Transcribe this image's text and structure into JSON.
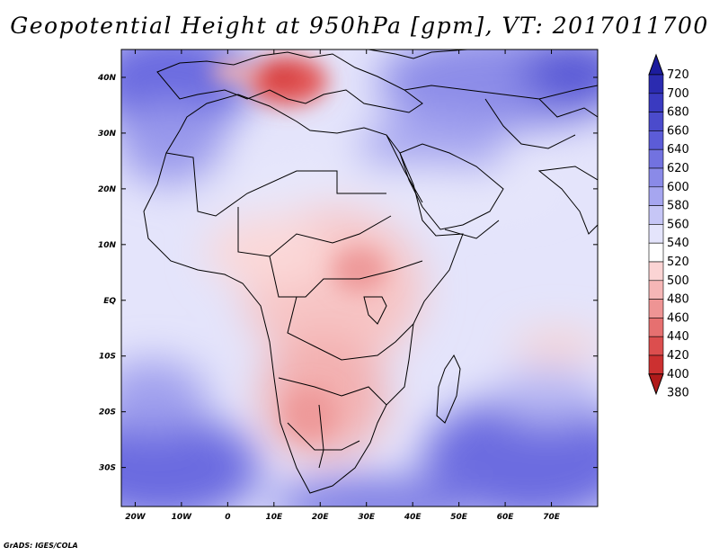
{
  "title": "Geopotential Height at 950hPa [gpm], VT: 2017011700",
  "footer": "GrADS: IGES/COLA",
  "map": {
    "lon_labels": [
      "20W",
      "10W",
      "0",
      "10E",
      "20E",
      "30E",
      "40E",
      "50E",
      "60E",
      "70E"
    ],
    "lat_labels": [
      "40N",
      "30N",
      "20N",
      "10N",
      "EQ",
      "10S",
      "20S",
      "30S"
    ],
    "lon_values": [
      -20,
      -10,
      0,
      10,
      20,
      30,
      40,
      50,
      60,
      70
    ],
    "lat_values": [
      40,
      30,
      20,
      10,
      0,
      -10,
      -20,
      -30
    ],
    "lon_range": [
      -23,
      80
    ],
    "lat_range": [
      -37,
      45
    ],
    "units": "gpm",
    "level": "950hPa",
    "valid_time": "2017011700"
  },
  "colorbar": {
    "labels": [
      "720",
      "700",
      "680",
      "660",
      "640",
      "620",
      "600",
      "580",
      "560",
      "540",
      "520",
      "500",
      "480",
      "460",
      "440",
      "420",
      "400",
      "380"
    ],
    "colors": [
      "#1c1c9e",
      "#2b2bb0",
      "#3a3ac0",
      "#4b4bcc",
      "#5c5cd8",
      "#7272e0",
      "#8a8ae8",
      "#a6a6f0",
      "#c6c6f6",
      "#e4e4fb",
      "#ffffff",
      "#fbd4d4",
      "#f5b6b6",
      "#ee9494",
      "#e67070",
      "#dc4e4e",
      "#cc3030",
      "#b01a1a"
    ]
  }
}
